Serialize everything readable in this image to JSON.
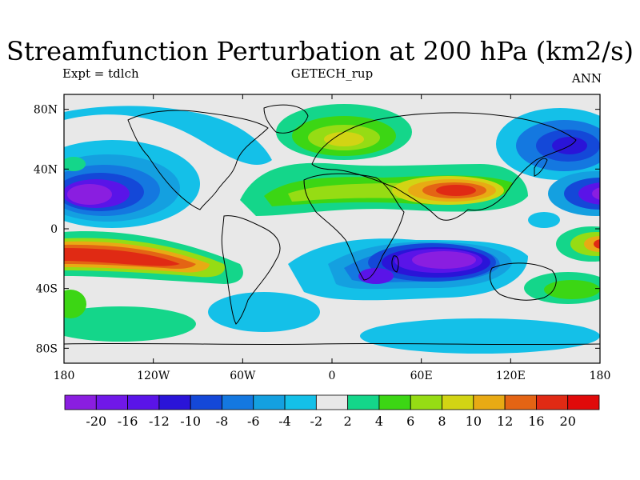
{
  "title": "Streamfunction Perturbation at 200 hPa (km2/s)",
  "subtitle_left": "Expt = tdlch",
  "subtitle_center": "GETECH_rup",
  "subtitle_right": "ANN",
  "lon_ticks": [
    "180",
    "120W",
    "60W",
    "0",
    "60E",
    "120E",
    "180"
  ],
  "lat_ticks": [
    "80N",
    "40N",
    "0",
    "40S",
    "80S"
  ],
  "colorbar": {
    "labels": [
      "-20",
      "-16",
      "-12",
      "-10",
      "-8",
      "-6",
      "-4",
      "-2",
      "2",
      "4",
      "6",
      "8",
      "10",
      "12",
      "16",
      "20"
    ],
    "colors": [
      "#8a1ee0",
      "#7018e8",
      "#5a14e8",
      "#2a14d8",
      "#1448d8",
      "#1478e0",
      "#14a0e0",
      "#14c0e8",
      "#e8e8e8",
      "#14d68a",
      "#3cd614",
      "#96dc14",
      "#d2d414",
      "#e8aa14",
      "#e46414",
      "#e02a14",
      "#e00a0a"
    ]
  },
  "map": {
    "lon_range": [
      -180,
      180
    ],
    "lat_range": [
      -90,
      90
    ],
    "background_color": "#e8e8e8",
    "projection": "cylindrical-equidistant"
  }
}
